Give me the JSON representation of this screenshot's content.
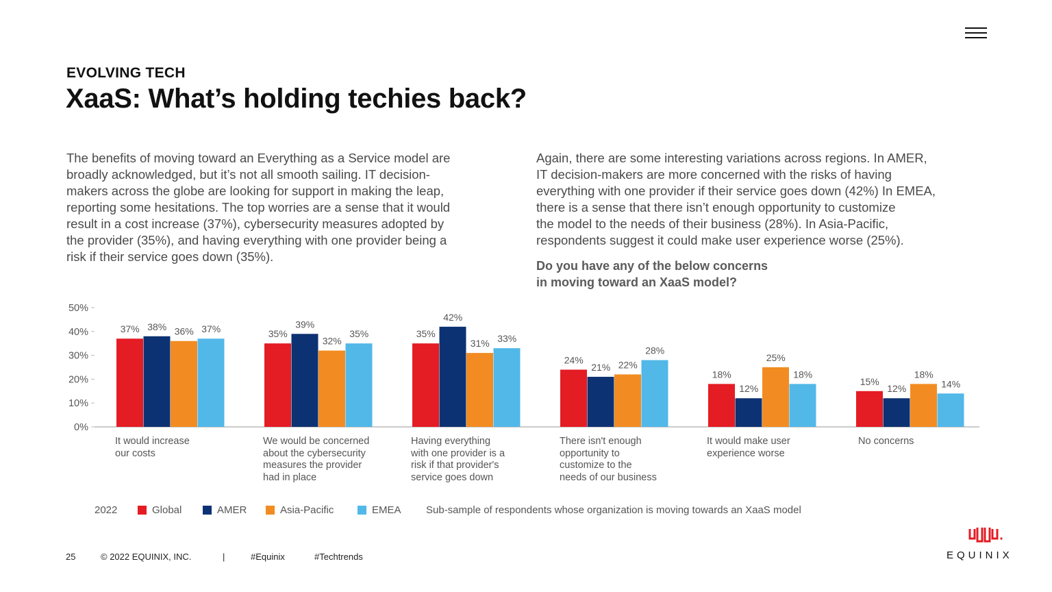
{
  "header": {
    "eyebrow": "EVOLVING TECH",
    "title": "XaaS: What’s holding techies back?"
  },
  "intro_left": [
    "The benefits of moving toward an Everything as a Service model are",
    "broadly acknowledged, but it’s not all smooth sailing. IT decision-",
    "makers across the globe are looking for support in making the leap,",
    "reporting some hesitations. The top worries are a sense that it would",
    "result in a cost increase (37%), cybersecurity measures adopted by",
    "the provider (35%), and having everything with one provider being a",
    "risk if their service goes down (35%)."
  ],
  "intro_right": [
    "Again, there are some interesting variations across regions. In AMER,",
    "IT decision-makers are more concerned with the risks of having",
    "everything with one provider if their service goes down (42%) In EMEA,",
    "there is a sense that there isn’t enough opportunity to customize",
    "the model to the needs of their business (28%). In Asia-Pacific,",
    "respondents suggest it could make user experience worse (25%)."
  ],
  "question": [
    "Do you have any of the below concerns",
    "in moving toward an XaaS model?"
  ],
  "chart_data": {
    "type": "bar",
    "title": "Do you have any of the below concerns in moving toward an XaaS model?",
    "categories": [
      [
        "It would increase",
        "our costs"
      ],
      [
        "We would be concerned",
        "about the cybersecurity",
        "measures the provider",
        "had in place"
      ],
      [
        "Having everything",
        "with one provider is a",
        "risk if that provider's",
        "service goes down"
      ],
      [
        "There isn't enough",
        "opportunity to",
        "customize to the",
        "needs of our business"
      ],
      [
        "It would make user",
        "experience worse"
      ],
      [
        "No concerns"
      ]
    ],
    "series": [
      {
        "name": "Global",
        "color": "#e41c24",
        "values": [
          37,
          35,
          35,
          24,
          18,
          15
        ]
      },
      {
        "name": "AMER",
        "color": "#0d3273",
        "values": [
          38,
          39,
          42,
          21,
          12,
          12
        ]
      },
      {
        "name": "Asia-Pacific",
        "color": "#f28c22",
        "values": [
          36,
          32,
          31,
          22,
          25,
          18
        ]
      },
      {
        "name": "EMEA",
        "color": "#52b8e8",
        "values": [
          37,
          35,
          33,
          28,
          18,
          14
        ]
      }
    ],
    "value_suffix": "%",
    "ylim": [
      0,
      50
    ],
    "yticks": [
      0,
      10,
      20,
      30,
      40,
      50
    ],
    "ytick_labels": [
      "0%",
      "10%",
      "20%",
      "30%",
      "40%",
      "50%"
    ],
    "legend_year": "2022",
    "note": "Sub-sample of respondents whose organization is moving towards an XaaS model"
  },
  "footer": {
    "page": "25",
    "copyright": "© 2022 EQUINIX, INC.",
    "separator": "|",
    "tag1": "#Equinix",
    "tag2": "#Techtrends"
  },
  "logo": {
    "wordmark": "EQUINIX",
    "color": "#e41c24"
  }
}
